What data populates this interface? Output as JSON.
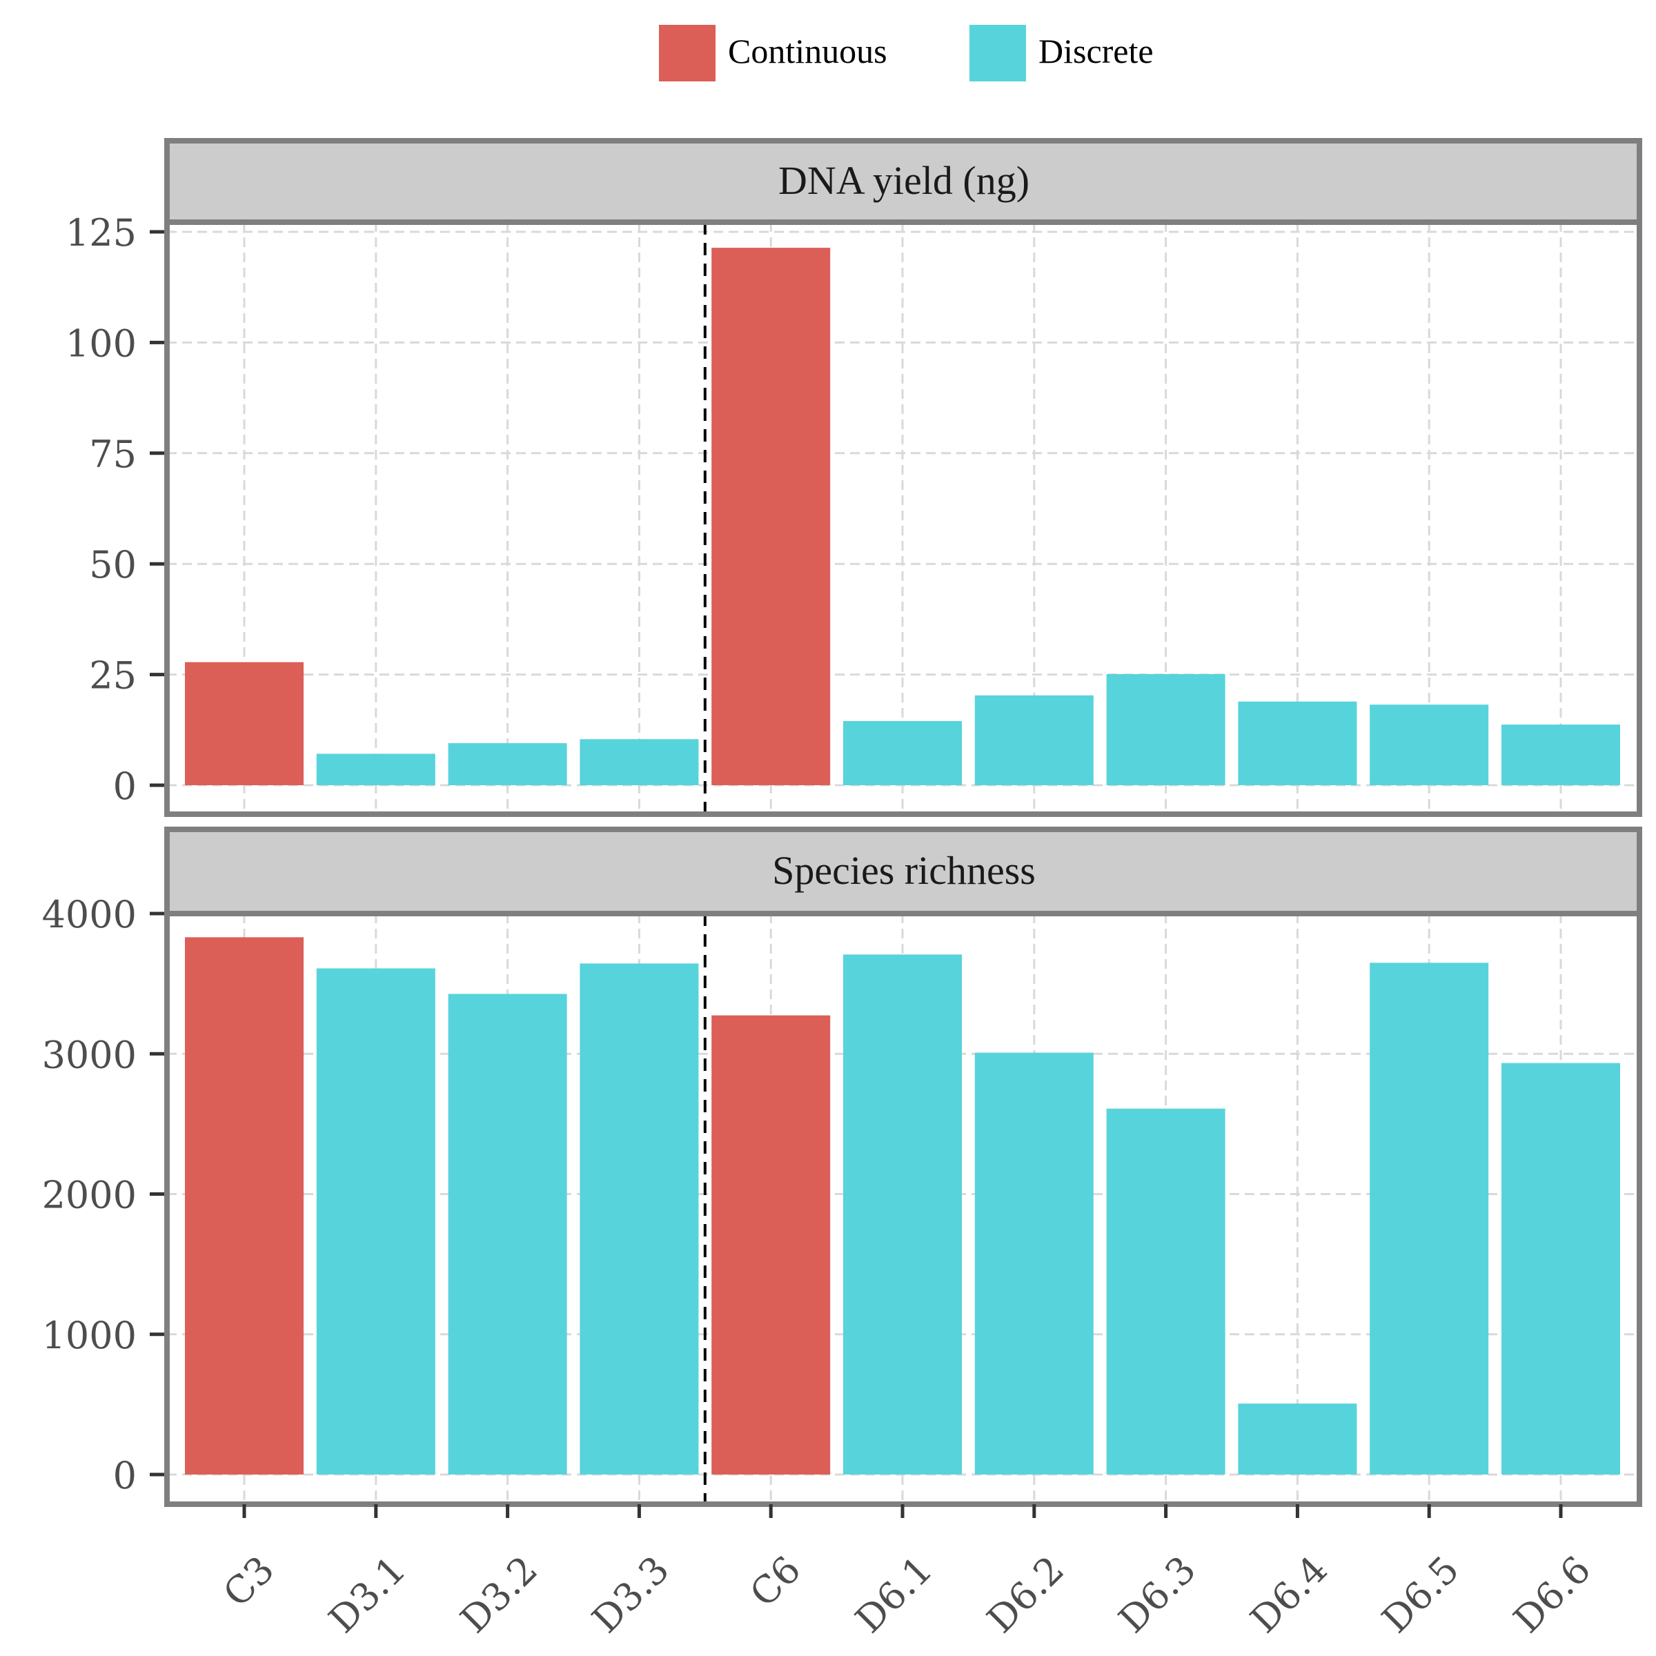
{
  "chart_data": {
    "type": "bar",
    "layout": "faceted-vertical",
    "categories": [
      "C3",
      "D3.1",
      "D3.2",
      "D3.3",
      "C6",
      "D6.1",
      "D6.2",
      "D6.3",
      "D6.4",
      "D6.5",
      "D6.6"
    ],
    "category_groups": [
      "Continuous",
      "Discrete",
      "Discrete",
      "Discrete",
      "Continuous",
      "Discrete",
      "Discrete",
      "Discrete",
      "Discrete",
      "Discrete",
      "Discrete"
    ],
    "legend": {
      "placement": "top",
      "entries": [
        {
          "label": "Continuous",
          "color": "#DB5F57"
        },
        {
          "label": "Discrete",
          "color": "#57D3DB"
        }
      ]
    },
    "reference_line": {
      "between": [
        "D3.3",
        "C6"
      ],
      "style": "dashed",
      "color": "#000000"
    },
    "grid": true,
    "xlabel": "",
    "ylabel": "",
    "x_tick_rotation_deg": 45,
    "panels": [
      {
        "title": "DNA yield (ng)",
        "values": [
          27.8,
          7.1,
          9.5,
          10.4,
          121.4,
          14.5,
          20.3,
          25.1,
          18.9,
          18.2,
          13.7
        ],
        "ylim": [
          -4,
          128
        ],
        "yticks": [
          0,
          25,
          50,
          75,
          100,
          125
        ],
        "ytick_labels": [
          "0",
          "25",
          "50",
          "75",
          "100",
          "125"
        ]
      },
      {
        "title": "Species richness",
        "values": [
          3831,
          3609,
          3427,
          3644,
          3274,
          3708,
          3008,
          2609,
          506,
          3649,
          2934
        ],
        "ylim": [
          -200,
          4010
        ],
        "yticks": [
          0,
          1000,
          2000,
          3000,
          4000
        ],
        "ytick_labels": [
          "0",
          "1000",
          "2000",
          "3000",
          "4000"
        ]
      }
    ]
  }
}
